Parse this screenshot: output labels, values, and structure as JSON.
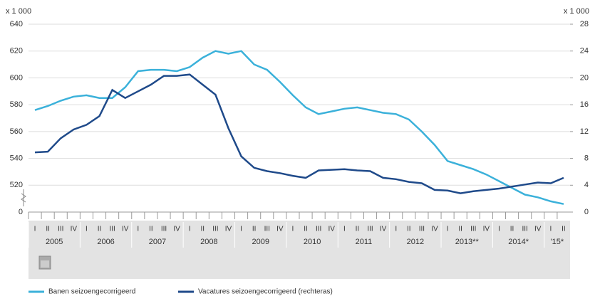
{
  "chart_data": {
    "type": "line",
    "y_unit": "x 1 000",
    "y2_unit": "x 1 000",
    "categories": [
      "I",
      "II",
      "III",
      "IV",
      "I",
      "II",
      "III",
      "IV",
      "I",
      "II",
      "III",
      "IV",
      "I",
      "II",
      "III",
      "IV",
      "I",
      "II",
      "III",
      "IV",
      "I",
      "II",
      "III",
      "IV",
      "I",
      "II",
      "III",
      "IV",
      "I",
      "II",
      "III",
      "IV",
      "I",
      "II",
      "III",
      "IV",
      "I",
      "II",
      "III",
      "IV",
      "I",
      "II"
    ],
    "years": [
      "2005",
      "2006",
      "2007",
      "2008",
      "2009",
      "2010",
      "2011",
      "2012",
      "2013**",
      "2014*",
      "'15*"
    ],
    "series": [
      {
        "name": "Banen seizoengecorrigeerd",
        "color": "#3bb1da",
        "axis": "y",
        "values": [
          576,
          579,
          583,
          586,
          587,
          585,
          585,
          593,
          605,
          606,
          606,
          605,
          608,
          615,
          620,
          618,
          620,
          610,
          606,
          597,
          587,
          578,
          573,
          575,
          577,
          578,
          576,
          574,
          573,
          569,
          560,
          550,
          538,
          535,
          532,
          528,
          523,
          518,
          513,
          511,
          508,
          506
        ]
      },
      {
        "name": "Vacatures seizoengecorrigeerd (rechteras)",
        "color": "#1f4a8a",
        "axis": "y2",
        "values": [
          8.9,
          9.0,
          11,
          12.3,
          13,
          14.3,
          18.2,
          17.0,
          18,
          19,
          20.3,
          20.3,
          20.5,
          19,
          17.5,
          12.5,
          8.3,
          6.6,
          6.1,
          5.8,
          5.4,
          5.1,
          6.2,
          6.3,
          6.4,
          6.2,
          6.1,
          5.1,
          4.9,
          4.5,
          4.3,
          3.3,
          3.2,
          2.8,
          3.1,
          3.3,
          3.5,
          3.8,
          4.1,
          4.4,
          4.3,
          5.1
        ]
      }
    ],
    "ylim": [
      500,
      640
    ],
    "yticks": [
      {
        "value": 500,
        "label": "0"
      },
      520,
      540,
      560,
      580,
      600,
      620,
      640
    ],
    "y2lim": [
      0,
      28
    ],
    "y2ticks": [
      0,
      4,
      8,
      12,
      16,
      20,
      24,
      28
    ],
    "grid": true
  }
}
